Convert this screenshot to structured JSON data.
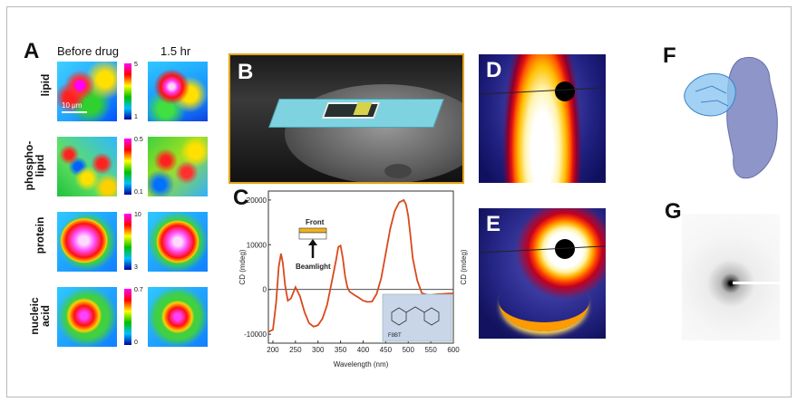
{
  "panel_a": {
    "letter": "A",
    "col_before": "Before drug",
    "col_after": "1.5 hr",
    "scale_bar": "10 μm",
    "rows": [
      {
        "label": "lipid",
        "cb_top": "5",
        "cb_bottom": "1"
      },
      {
        "label": "phospho-\nlipid",
        "cb_top": "0.5",
        "cb_bottom": "0.1"
      },
      {
        "label": "protein",
        "cb_top": "10",
        "cb_bottom": "3"
      },
      {
        "label": "nucleic\nacid",
        "cb_top": "0.7",
        "cb_bottom": "0"
      }
    ]
  },
  "panel_b": {
    "letter": "B"
  },
  "panel_c": {
    "letter": "C",
    "y_label_left": "CD (mdeg)",
    "y_label_right": "CD (mdeg)",
    "x_label": "Wavelength (nm)",
    "inset_front": "Front",
    "inset_beam": "Beamlight",
    "molecule_label": "F8BT"
  },
  "panel_d": {
    "letter": "D"
  },
  "panel_e": {
    "letter": "E"
  },
  "panel_f": {
    "letter": "F"
  },
  "panel_g": {
    "letter": "G"
  },
  "chart_data": {
    "type": "line",
    "title": "",
    "xlabel": "Wavelength (nm)",
    "ylabel": "CD (mdeg)",
    "xlim": [
      190,
      600
    ],
    "ylim": [
      -12000,
      22000
    ],
    "x_ticks": [
      200,
      250,
      300,
      350,
      400,
      450,
      500,
      550,
      600
    ],
    "y_ticks": [
      -10000,
      0,
      10000,
      20000
    ],
    "series": [
      {
        "color": "#d9491c",
        "x": [
          190,
          200,
          207,
          213,
          218,
          222,
          227,
          233,
          240,
          250,
          260,
          270,
          280,
          290,
          300,
          310,
          320,
          330,
          340,
          345,
          350,
          355,
          360,
          365,
          370,
          380,
          390,
          400,
          410,
          420,
          430,
          440,
          450,
          460,
          470,
          480,
          490,
          495,
          500,
          505,
          510,
          520,
          530,
          545,
          560,
          575,
          590,
          600
        ],
        "y": [
          -9500,
          -9000,
          -3000,
          5000,
          8000,
          6000,
          1000,
          -2500,
          -2000,
          500,
          -1500,
          -5000,
          -7500,
          -8300,
          -8000,
          -6500,
          -3500,
          1500,
          6500,
          9500,
          9800,
          7000,
          3000,
          500,
          -500,
          -1200,
          -1800,
          -2500,
          -2800,
          -2700,
          -1000,
          2500,
          8000,
          13500,
          17500,
          19500,
          20000,
          19000,
          16500,
          12000,
          7000,
          2000,
          -800,
          -1300,
          -1100,
          -1000,
          -900,
          -900
        ]
      }
    ]
  }
}
